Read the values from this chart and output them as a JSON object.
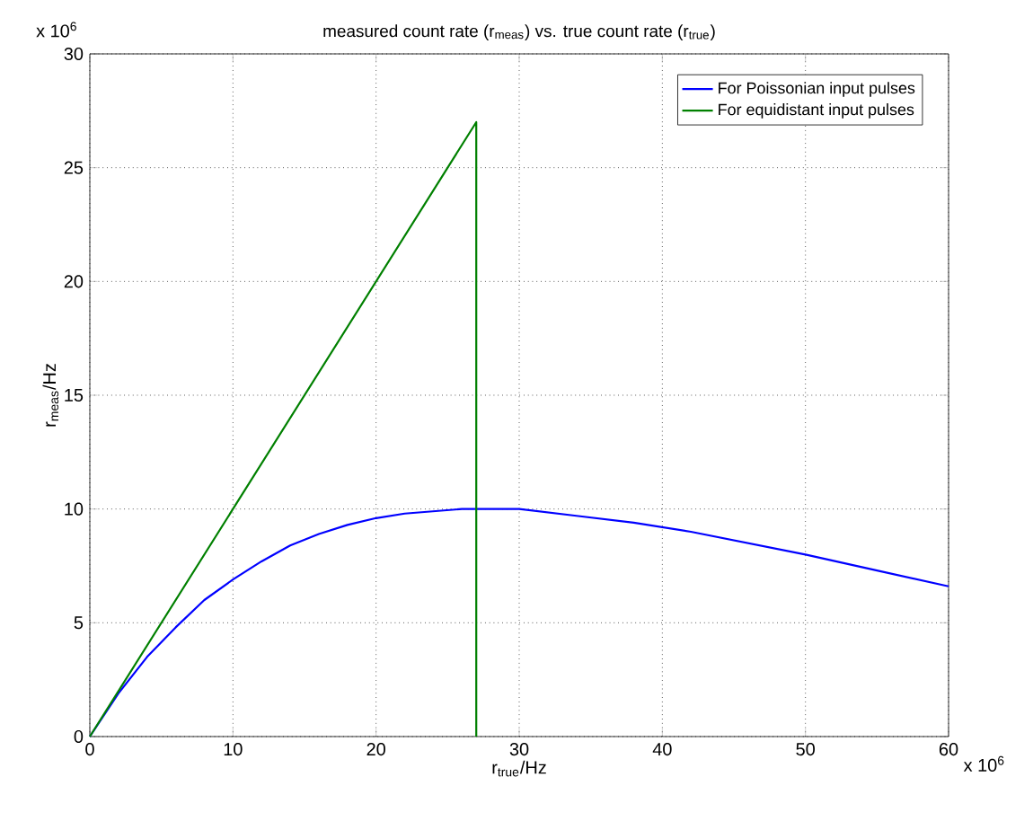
{
  "chart_data": {
    "type": "line",
    "title": "measured count rate (r$_{meas}$) vs. true count rate (r$_{true}$)",
    "xlabel": "r$_{true}$/Hz",
    "ylabel": "r$_{meas}$/Hz",
    "annotations": [
      "x 10$^{6}$",
      "x 10$^{6}$"
    ],
    "xlim": [
      0,
      60
    ],
    "ylim": [
      0,
      30
    ],
    "xticks": [
      0,
      10,
      20,
      30,
      40,
      50,
      60
    ],
    "yticks": [
      0,
      5,
      10,
      15,
      20,
      25,
      30
    ],
    "grid": true,
    "legend": "top right",
    "marker": "none",
    "line_style": "solid",
    "series": [
      {
        "name": "For Poissonian input pulses",
        "color": "#0000ff",
        "x": [
          0,
          2,
          4,
          6,
          8,
          10,
          12,
          14,
          16,
          18,
          20,
          22,
          24,
          26,
          28,
          30,
          34,
          38,
          42,
          46,
          50,
          55,
          60
        ],
        "values": [
          0,
          1.9,
          3.5,
          4.8,
          6.0,
          6.9,
          7.7,
          8.4,
          8.9,
          9.3,
          9.6,
          9.8,
          9.9,
          10.0,
          10.0,
          10.0,
          9.7,
          9.4,
          9.0,
          8.5,
          8.0,
          7.3,
          6.6
        ]
      },
      {
        "name": "For equidistant input pulses",
        "color": "#008000",
        "x": [
          0,
          27,
          27
        ],
        "values": [
          0,
          27,
          0
        ]
      }
    ]
  }
}
